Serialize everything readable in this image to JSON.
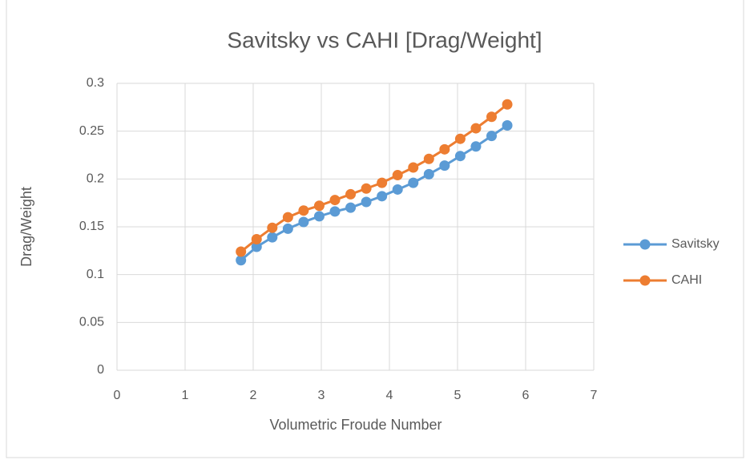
{
  "chart_data": {
    "type": "scatter-line",
    "title": "Savitsky vs CAHI [Drag/Weight]",
    "x_label": "Volumetric Froude Number",
    "y_label": "Drag/Weight",
    "x": [
      1.82,
      2.05,
      2.28,
      2.51,
      2.74,
      2.97,
      3.2,
      3.43,
      3.66,
      3.89,
      4.12,
      4.35,
      4.58,
      4.81,
      5.04,
      5.27,
      5.5,
      5.73
    ],
    "series": [
      {
        "name": "Savitsky",
        "color": "#5b9bd5",
        "values": [
          0.115,
          0.129,
          0.139,
          0.148,
          0.155,
          0.161,
          0.166,
          0.17,
          0.176,
          0.182,
          0.189,
          0.196,
          0.205,
          0.214,
          0.224,
          0.234,
          0.245,
          0.256
        ]
      },
      {
        "name": "CAHI",
        "color": "#ed7d31",
        "values": [
          0.124,
          0.137,
          0.149,
          0.16,
          0.167,
          0.172,
          0.178,
          0.184,
          0.19,
          0.196,
          0.204,
          0.212,
          0.221,
          0.231,
          0.242,
          0.253,
          0.265,
          0.278
        ]
      }
    ],
    "xlim": [
      0,
      7
    ],
    "xticks": [
      0,
      1,
      2,
      3,
      4,
      5,
      6,
      7
    ],
    "ylim": [
      0,
      0.3
    ],
    "yticks": [
      0,
      0.05,
      0.1,
      0.15,
      0.2,
      0.25,
      0.3
    ],
    "grid": true,
    "legend": "right"
  }
}
